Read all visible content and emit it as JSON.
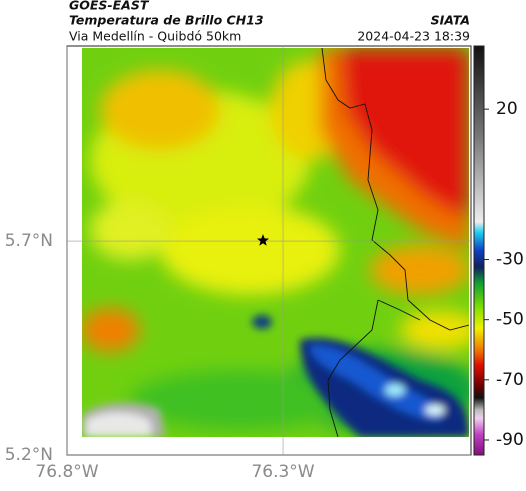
{
  "header": {
    "source": "GOES-EAST",
    "title": "Temperatura de Brillo CH13",
    "subtitle": "Via Medellín - Quibdó 50km",
    "brand": "SIATA",
    "timestamp": "2024-04-23 18:39"
  },
  "map": {
    "xlim": [
      -76.8,
      -75.865
    ],
    "ylim": [
      5.2,
      6.156
    ],
    "xticks": [
      {
        "value": -76.8,
        "label": "76.8°W"
      },
      {
        "value": -76.3,
        "label": "76.3°W"
      }
    ],
    "yticks": [
      {
        "value": 5.7,
        "label": "5.7°N"
      },
      {
        "value": 5.2,
        "label": "5.2°N"
      }
    ],
    "grid": true
  },
  "colorbar": {
    "lim": [
      -95,
      41
    ],
    "ticks": [
      20,
      -30,
      -50,
      -70,
      -90
    ]
  }
}
